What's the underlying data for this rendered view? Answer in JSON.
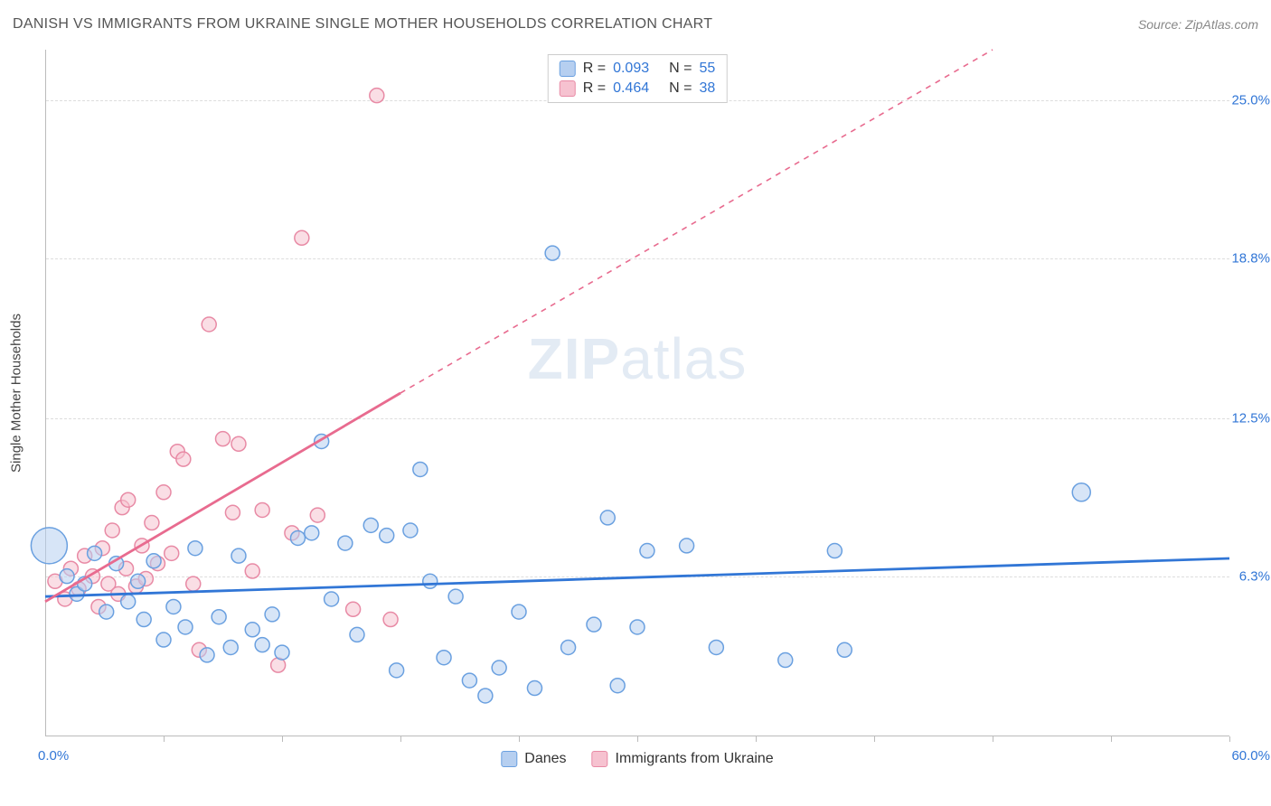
{
  "header": {
    "title": "DANISH VS IMMIGRANTS FROM UKRAINE SINGLE MOTHER HOUSEHOLDS CORRELATION CHART",
    "source_prefix": "Source: ",
    "source_name": "ZipAtlas.com"
  },
  "watermark": {
    "bold": "ZIP",
    "light": "atlas"
  },
  "chart": {
    "type": "scatter",
    "y_axis_title": "Single Mother Households",
    "xlim": [
      0,
      60
    ],
    "ylim": [
      0,
      27
    ],
    "x_min_label": "0.0%",
    "x_max_label": "60.0%",
    "x_min_color": "#3176d6",
    "x_max_color": "#3176d6",
    "x_tick_positions": [
      6,
      12,
      18,
      24,
      30,
      36,
      42,
      48,
      54,
      60
    ],
    "y_ticks": [
      {
        "v": 6.3,
        "label": "6.3%",
        "color": "#3176d6"
      },
      {
        "v": 12.5,
        "label": "12.5%",
        "color": "#3176d6"
      },
      {
        "v": 18.8,
        "label": "18.8%",
        "color": "#3176d6"
      },
      {
        "v": 25.0,
        "label": "25.0%",
        "color": "#3176d6"
      }
    ],
    "grid_color": "#dddddd",
    "background_color": "#ffffff"
  },
  "series": [
    {
      "key": "danes",
      "label": "Danes",
      "marker_fill": "#b6cff0",
      "marker_stroke": "#6aa0e0",
      "marker_fill_opacity": 0.55,
      "line_color": "#3176d6",
      "line_width": 2.8,
      "R": "0.093",
      "N": "55",
      "regression": {
        "x1": 0,
        "y1": 5.5,
        "x2": 60,
        "y2": 7.0,
        "dash_after_x": 60
      },
      "points": [
        {
          "x": 0.2,
          "y": 7.5,
          "r": 20
        },
        {
          "x": 1.1,
          "y": 6.3,
          "r": 8
        },
        {
          "x": 1.6,
          "y": 5.6,
          "r": 8
        },
        {
          "x": 2.0,
          "y": 6.0,
          "r": 8
        },
        {
          "x": 2.5,
          "y": 7.2,
          "r": 8
        },
        {
          "x": 3.1,
          "y": 4.9,
          "r": 8
        },
        {
          "x": 3.6,
          "y": 6.8,
          "r": 8
        },
        {
          "x": 4.2,
          "y": 5.3,
          "r": 8
        },
        {
          "x": 4.7,
          "y": 6.1,
          "r": 8
        },
        {
          "x": 5.0,
          "y": 4.6,
          "r": 8
        },
        {
          "x": 5.5,
          "y": 6.9,
          "r": 8
        },
        {
          "x": 6.0,
          "y": 3.8,
          "r": 8
        },
        {
          "x": 6.5,
          "y": 5.1,
          "r": 8
        },
        {
          "x": 7.1,
          "y": 4.3,
          "r": 8
        },
        {
          "x": 7.6,
          "y": 7.4,
          "r": 8
        },
        {
          "x": 8.2,
          "y": 3.2,
          "r": 8
        },
        {
          "x": 8.8,
          "y": 4.7,
          "r": 8
        },
        {
          "x": 9.4,
          "y": 3.5,
          "r": 8
        },
        {
          "x": 9.8,
          "y": 7.1,
          "r": 8
        },
        {
          "x": 10.5,
          "y": 4.2,
          "r": 8
        },
        {
          "x": 11.0,
          "y": 3.6,
          "r": 8
        },
        {
          "x": 11.5,
          "y": 4.8,
          "r": 8
        },
        {
          "x": 12.0,
          "y": 3.3,
          "r": 8
        },
        {
          "x": 12.8,
          "y": 7.8,
          "r": 8
        },
        {
          "x": 13.5,
          "y": 8.0,
          "r": 8
        },
        {
          "x": 14.0,
          "y": 11.6,
          "r": 8
        },
        {
          "x": 14.5,
          "y": 5.4,
          "r": 8
        },
        {
          "x": 15.2,
          "y": 7.6,
          "r": 8
        },
        {
          "x": 15.8,
          "y": 4.0,
          "r": 8
        },
        {
          "x": 16.5,
          "y": 8.3,
          "r": 8
        },
        {
          "x": 17.3,
          "y": 7.9,
          "r": 8
        },
        {
          "x": 17.8,
          "y": 2.6,
          "r": 8
        },
        {
          "x": 18.5,
          "y": 8.1,
          "r": 8
        },
        {
          "x": 19.0,
          "y": 10.5,
          "r": 8
        },
        {
          "x": 19.5,
          "y": 6.1,
          "r": 8
        },
        {
          "x": 20.2,
          "y": 3.1,
          "r": 8
        },
        {
          "x": 20.8,
          "y": 5.5,
          "r": 8
        },
        {
          "x": 21.5,
          "y": 2.2,
          "r": 8
        },
        {
          "x": 22.3,
          "y": 1.6,
          "r": 8
        },
        {
          "x": 23.0,
          "y": 2.7,
          "r": 8
        },
        {
          "x": 24.0,
          "y": 4.9,
          "r": 8
        },
        {
          "x": 24.8,
          "y": 1.9,
          "r": 8
        },
        {
          "x": 25.7,
          "y": 19.0,
          "r": 8
        },
        {
          "x": 26.5,
          "y": 3.5,
          "r": 8
        },
        {
          "x": 27.8,
          "y": 4.4,
          "r": 8
        },
        {
          "x": 28.5,
          "y": 8.6,
          "r": 8
        },
        {
          "x": 29.0,
          "y": 2.0,
          "r": 8
        },
        {
          "x": 30.5,
          "y": 7.3,
          "r": 8
        },
        {
          "x": 30.0,
          "y": 4.3,
          "r": 8
        },
        {
          "x": 32.5,
          "y": 7.5,
          "r": 8
        },
        {
          "x": 34.0,
          "y": 3.5,
          "r": 8
        },
        {
          "x": 37.5,
          "y": 3.0,
          "r": 8
        },
        {
          "x": 40.0,
          "y": 7.3,
          "r": 8
        },
        {
          "x": 40.5,
          "y": 3.4,
          "r": 8
        },
        {
          "x": 52.5,
          "y": 9.6,
          "r": 10
        }
      ]
    },
    {
      "key": "ukraine",
      "label": "Immigrants from Ukraine",
      "marker_fill": "#f6c2d0",
      "marker_stroke": "#e88aa5",
      "marker_fill_opacity": 0.55,
      "line_color": "#e86b8f",
      "line_width": 2.8,
      "R": "0.464",
      "N": "38",
      "regression": {
        "x1": 0,
        "y1": 5.3,
        "x2": 18,
        "y2": 13.5,
        "dash_after_x": 18,
        "dash_x2": 48,
        "dash_y2": 27
      },
      "points": [
        {
          "x": 0.5,
          "y": 6.1,
          "r": 8
        },
        {
          "x": 1.0,
          "y": 5.4,
          "r": 8
        },
        {
          "x": 1.3,
          "y": 6.6,
          "r": 8
        },
        {
          "x": 1.7,
          "y": 5.8,
          "r": 8
        },
        {
          "x": 2.0,
          "y": 7.1,
          "r": 8
        },
        {
          "x": 2.4,
          "y": 6.3,
          "r": 8
        },
        {
          "x": 2.7,
          "y": 5.1,
          "r": 8
        },
        {
          "x": 2.9,
          "y": 7.4,
          "r": 8
        },
        {
          "x": 3.2,
          "y": 6.0,
          "r": 8
        },
        {
          "x": 3.4,
          "y": 8.1,
          "r": 8
        },
        {
          "x": 3.7,
          "y": 5.6,
          "r": 8
        },
        {
          "x": 3.9,
          "y": 9.0,
          "r": 8
        },
        {
          "x": 4.1,
          "y": 6.6,
          "r": 8
        },
        {
          "x": 4.2,
          "y": 9.3,
          "r": 8
        },
        {
          "x": 4.6,
          "y": 5.9,
          "r": 8
        },
        {
          "x": 4.9,
          "y": 7.5,
          "r": 8
        },
        {
          "x": 5.1,
          "y": 6.2,
          "r": 8
        },
        {
          "x": 5.4,
          "y": 8.4,
          "r": 8
        },
        {
          "x": 5.7,
          "y": 6.8,
          "r": 8
        },
        {
          "x": 6.0,
          "y": 9.6,
          "r": 8
        },
        {
          "x": 6.4,
          "y": 7.2,
          "r": 8
        },
        {
          "x": 6.7,
          "y": 11.2,
          "r": 8
        },
        {
          "x": 7.0,
          "y": 10.9,
          "r": 8
        },
        {
          "x": 7.5,
          "y": 6.0,
          "r": 8
        },
        {
          "x": 7.8,
          "y": 3.4,
          "r": 8
        },
        {
          "x": 8.3,
          "y": 16.2,
          "r": 8
        },
        {
          "x": 9.0,
          "y": 11.7,
          "r": 8
        },
        {
          "x": 9.5,
          "y": 8.8,
          "r": 8
        },
        {
          "x": 9.8,
          "y": 11.5,
          "r": 8
        },
        {
          "x": 10.5,
          "y": 6.5,
          "r": 8
        },
        {
          "x": 11.0,
          "y": 8.9,
          "r": 8
        },
        {
          "x": 11.8,
          "y": 2.8,
          "r": 8
        },
        {
          "x": 12.5,
          "y": 8.0,
          "r": 8
        },
        {
          "x": 13.0,
          "y": 19.6,
          "r": 8
        },
        {
          "x": 13.8,
          "y": 8.7,
          "r": 8
        },
        {
          "x": 15.6,
          "y": 5.0,
          "r": 8
        },
        {
          "x": 16.8,
          "y": 25.2,
          "r": 8
        },
        {
          "x": 17.5,
          "y": 4.6,
          "r": 8
        }
      ]
    }
  ],
  "r_legend": {
    "R_label": "R =",
    "N_label": "N ="
  }
}
